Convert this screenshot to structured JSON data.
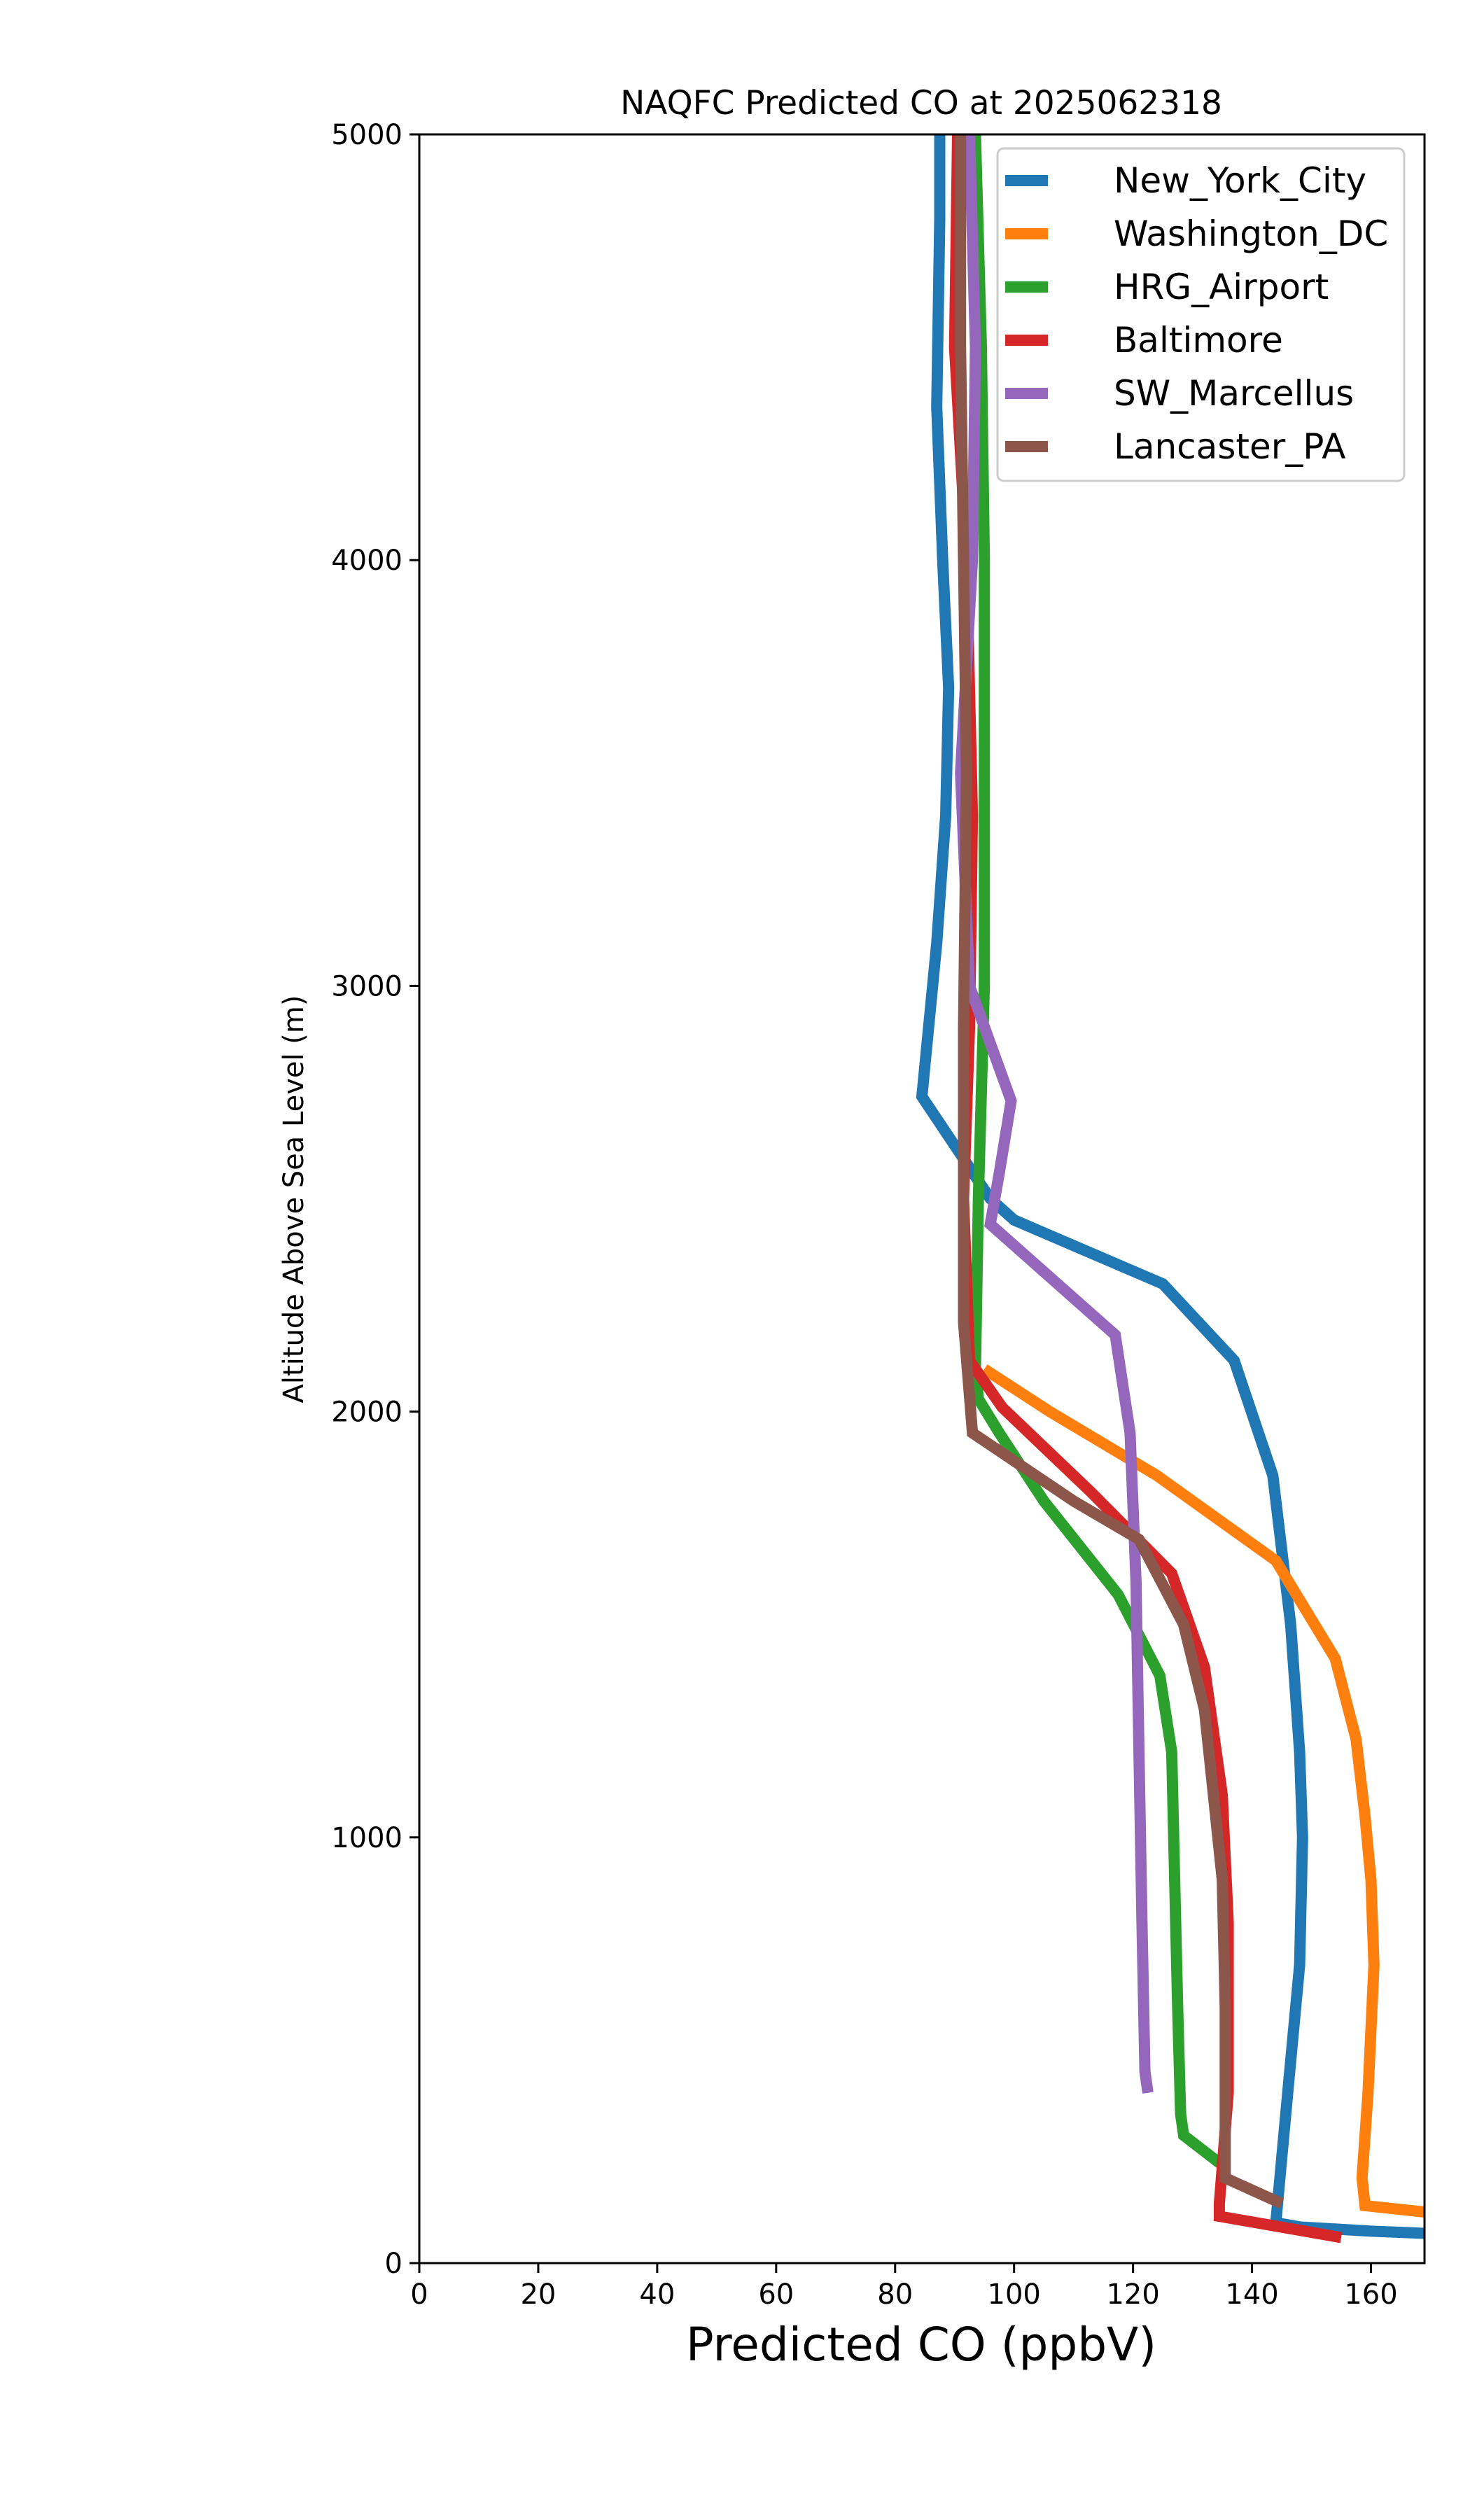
{
  "chart_data": {
    "type": "line",
    "title": "NAQFC Predicted CO at 2025062318",
    "xlabel": "Predicted CO (ppbV)",
    "ylabel": "Altitude Above Sea Level (m)",
    "xlim": [
      0,
      169
    ],
    "ylim": [
      0,
      5000
    ],
    "xticks": [
      "0",
      "20",
      "40",
      "60",
      "80",
      "100",
      "120",
      "140",
      "160"
    ],
    "xtick_values": [
      0,
      20,
      40,
      60,
      80,
      100,
      120,
      140,
      160
    ],
    "yticks": [
      "0",
      "1000",
      "2000",
      "3000",
      "4000",
      "5000"
    ],
    "ytick_values": [
      0,
      1000,
      2000,
      3000,
      4000,
      5000
    ],
    "grid": false,
    "legend_position": "top-right",
    "series": [
      {
        "name": "New_York_City",
        "color": "#1f77b4",
        "points": [
          [
            169,
            70
          ],
          [
            160,
            75
          ],
          [
            148,
            85
          ],
          [
            144,
            95
          ],
          [
            146,
            400
          ],
          [
            148,
            700
          ],
          [
            148.5,
            1000
          ],
          [
            148,
            1200
          ],
          [
            146.5,
            1500
          ],
          [
            143.5,
            1850
          ],
          [
            137,
            2120
          ],
          [
            125,
            2300
          ],
          [
            100,
            2450
          ],
          [
            96,
            2500
          ],
          [
            84.5,
            2740
          ],
          [
            87,
            3100
          ],
          [
            88.5,
            3400
          ],
          [
            89,
            3700
          ],
          [
            88,
            4000
          ],
          [
            87,
            4360
          ],
          [
            87.5,
            4800
          ],
          [
            87.5,
            5000
          ]
        ]
      },
      {
        "name": "Washington_DC",
        "color": "#ff7f0e",
        "points": [
          [
            169,
            120
          ],
          [
            159,
            135
          ],
          [
            158.5,
            200
          ],
          [
            159.5,
            400
          ],
          [
            160.5,
            700
          ],
          [
            160,
            900
          ],
          [
            159,
            1050
          ],
          [
            157.5,
            1230
          ],
          [
            154,
            1420
          ],
          [
            144,
            1650
          ],
          [
            124,
            1850
          ],
          [
            106,
            2000
          ],
          [
            95,
            2100
          ]
        ]
      },
      {
        "name": "HRG_Airport",
        "color": "#2ca02c",
        "points": [
          [
            135,
            230
          ],
          [
            128.5,
            300
          ],
          [
            128,
            350
          ],
          [
            127.5,
            600
          ],
          [
            127,
            900
          ],
          [
            126.5,
            1200
          ],
          [
            124.5,
            1380
          ],
          [
            117.5,
            1570
          ],
          [
            105,
            1790
          ],
          [
            97.5,
            1950
          ],
          [
            94,
            2030
          ],
          [
            93.5,
            2100
          ],
          [
            94,
            2500
          ],
          [
            95,
            3000
          ],
          [
            95,
            3500
          ],
          [
            95,
            4000
          ],
          [
            94.5,
            4500
          ],
          [
            93.5,
            5000
          ]
        ]
      },
      {
        "name": "Baltimore",
        "color": "#d62728",
        "points": [
          [
            155,
            60
          ],
          [
            134.5,
            110
          ],
          [
            134.5,
            140
          ],
          [
            136,
            400
          ],
          [
            136,
            800
          ],
          [
            135,
            1100
          ],
          [
            132,
            1400
          ],
          [
            126.5,
            1620
          ],
          [
            113,
            1810
          ],
          [
            98,
            2010
          ],
          [
            92.5,
            2120
          ],
          [
            91.5,
            2500
          ],
          [
            92.5,
            2900
          ],
          [
            93,
            3400
          ],
          [
            92,
            4000
          ],
          [
            90,
            4500
          ],
          [
            90.5,
            5000
          ]
        ]
      },
      {
        "name": "SW_Marcellus",
        "color": "#9467bd",
        "points": [
          [
            122.5,
            400
          ],
          [
            122,
            450
          ],
          [
            121.5,
            800
          ],
          [
            121,
            1200
          ],
          [
            120.5,
            1600
          ],
          [
            119.5,
            1950
          ],
          [
            117,
            2180
          ],
          [
            96,
            2440
          ],
          [
            97.5,
            2560
          ],
          [
            99.5,
            2730
          ],
          [
            92.5,
            3000
          ],
          [
            91,
            3500
          ],
          [
            93,
            4000
          ],
          [
            93.5,
            4500
          ],
          [
            92.5,
            5000
          ]
        ]
      },
      {
        "name": "Lancaster_PA",
        "color": "#8c564b",
        "points": [
          [
            145,
            140
          ],
          [
            135.5,
            200
          ],
          [
            135.5,
            300
          ],
          [
            135.5,
            600
          ],
          [
            135,
            900
          ],
          [
            133.5,
            1100
          ],
          [
            132,
            1300
          ],
          [
            128.5,
            1500
          ],
          [
            121,
            1700
          ],
          [
            110,
            1790
          ],
          [
            93,
            1950
          ],
          [
            91.5,
            2210
          ],
          [
            91.5,
            2900
          ],
          [
            92,
            3500
          ],
          [
            91.5,
            4000
          ],
          [
            91,
            4500
          ],
          [
            91,
            5000
          ]
        ]
      }
    ]
  }
}
